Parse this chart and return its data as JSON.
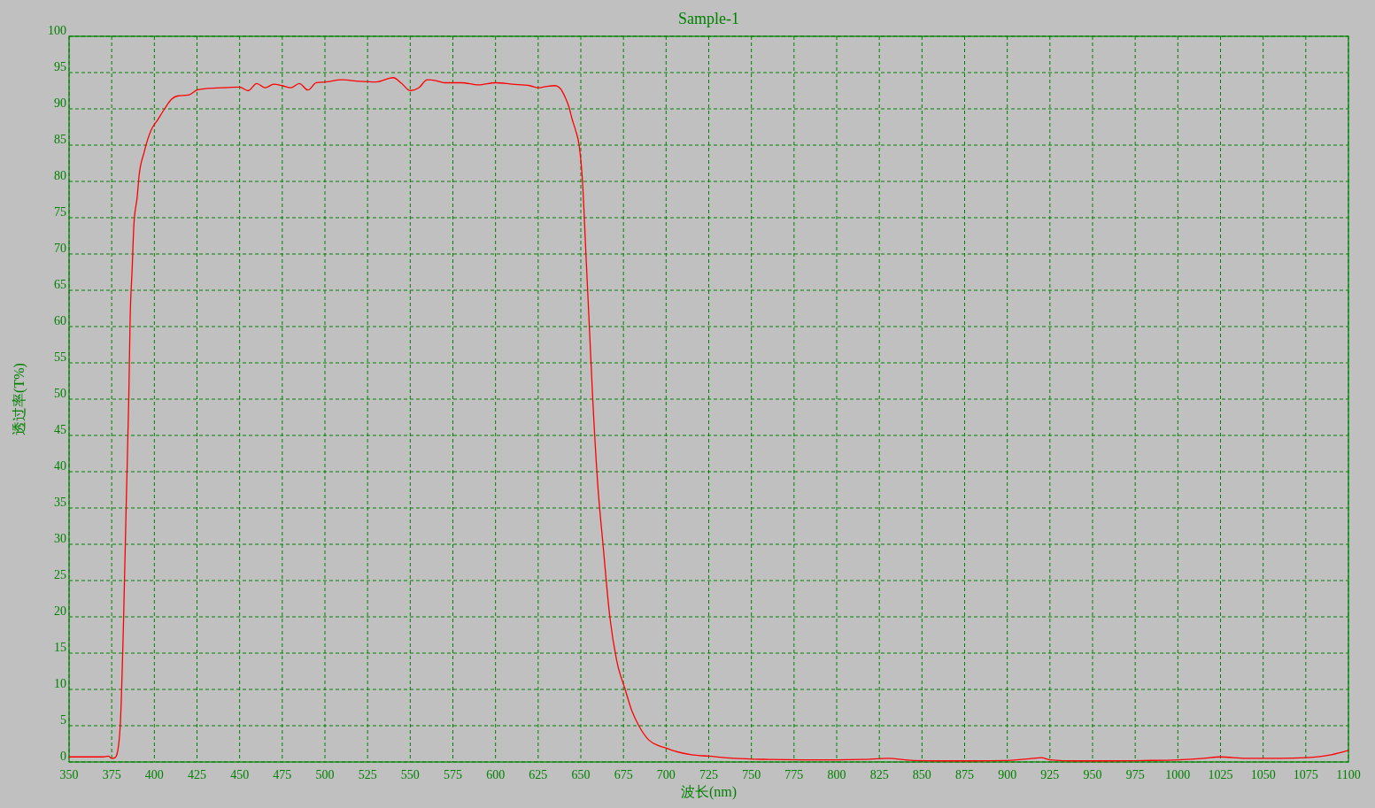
{
  "chart_data": {
    "type": "line",
    "title": "Sample-1",
    "xlabel": "波长(nm)",
    "ylabel": "透过率(T%)",
    "x": [
      350,
      360,
      370,
      373,
      375,
      377,
      378,
      380,
      382,
      383.5,
      385,
      385.8,
      387,
      388,
      390,
      391,
      394,
      398,
      402,
      406,
      410,
      414,
      420,
      425,
      430,
      440,
      450,
      455,
      460,
      465,
      470,
      475,
      480,
      485,
      490,
      495,
      500,
      510,
      520,
      530,
      540,
      545,
      550,
      555,
      560,
      565,
      570,
      580,
      590,
      600,
      610,
      620,
      625,
      630,
      635,
      638,
      641,
      643,
      645,
      647,
      649,
      651,
      653,
      655,
      657,
      660,
      663,
      667,
      671,
      676,
      680,
      684,
      690,
      695,
      699,
      705,
      715,
      725,
      740,
      760,
      780,
      800,
      815,
      830,
      845,
      860,
      880,
      900,
      915,
      920,
      925,
      940,
      960,
      980,
      1000,
      1015,
      1025,
      1040,
      1060,
      1075,
      1090,
      1100
    ],
    "series": [
      {
        "color": "#ff0000",
        "values": [
          0.7,
          0.7,
          0.7,
          0.8,
          0.5,
          0.6,
          1,
          5,
          20,
          35.5,
          50,
          61,
          68,
          74,
          78,
          80.7,
          84,
          87,
          88.5,
          90,
          91.3,
          91.8,
          91.9,
          92.6,
          92.8,
          92.9,
          93,
          92.5,
          93.5,
          92.9,
          93.4,
          93.2,
          92.9,
          93.5,
          92.6,
          93.6,
          93.7,
          94,
          93.8,
          93.7,
          94.3,
          93.5,
          92.5,
          92.9,
          94,
          93.9,
          93.6,
          93.6,
          93.3,
          93.6,
          93.4,
          93.2,
          92.9,
          93.1,
          93.2,
          92.8,
          91.5,
          90.3,
          88.5,
          87,
          85,
          80,
          70,
          60,
          50,
          38,
          30,
          20,
          14,
          10,
          7,
          5,
          3,
          2.3,
          2,
          1.5,
          1,
          0.8,
          0.5,
          0.35,
          0.3,
          0.3,
          0.35,
          0.5,
          0.2,
          0.15,
          0.15,
          0.2,
          0.5,
          0.6,
          0.3,
          0.15,
          0.15,
          0.2,
          0.3,
          0.5,
          0.7,
          0.5,
          0.5,
          0.6,
          1,
          1.6
        ]
      }
    ],
    "xlim": [
      350,
      1100
    ],
    "xticks": [
      350,
      375,
      400,
      425,
      450,
      475,
      500,
      525,
      550,
      575,
      600,
      625,
      650,
      675,
      700,
      725,
      750,
      775,
      800,
      825,
      850,
      875,
      900,
      925,
      950,
      975,
      1000,
      1025,
      1050,
      1075,
      1100
    ],
    "ylim": [
      0,
      100
    ],
    "yticks": [
      0,
      5,
      10,
      15,
      20,
      25,
      30,
      35,
      40,
      45,
      50,
      55,
      60,
      65,
      70,
      75,
      80,
      85,
      90,
      95,
      100
    ],
    "grid": true,
    "line_style": "solid"
  }
}
